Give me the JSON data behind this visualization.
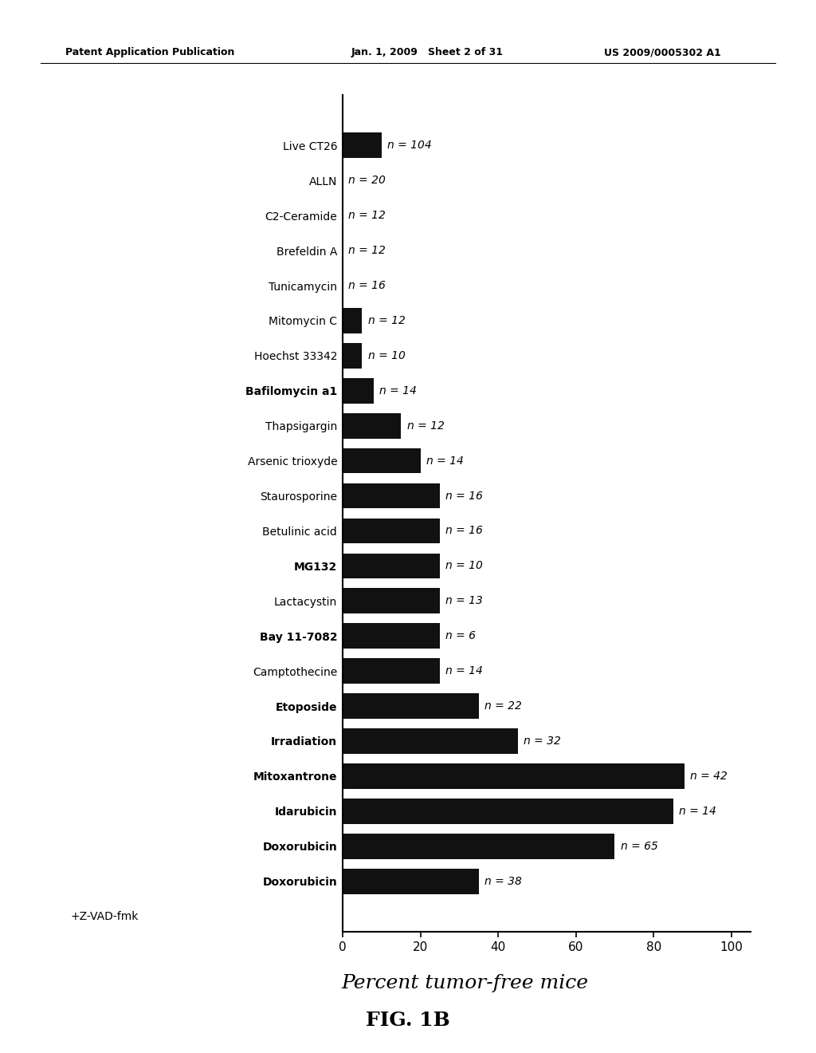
{
  "categories": [
    "Live CT26",
    "ALLN",
    "C2-Ceramide",
    "Brefeldin A",
    "Tunicamycin",
    "Mitomycin C",
    "Hoechst 33342",
    "Bafilomycin a1",
    "Thapsigargin",
    "Arsenic trioxyde",
    "Staurosporine",
    "Betulinic acid",
    "MG132",
    "Lactacystin",
    "Bay 11-7082",
    "Camptothecine",
    "Etoposide",
    "Irradiation",
    "Mitoxantrone",
    "Idarubicin",
    "Doxorubicin",
    "Doxorubicin"
  ],
  "values": [
    10,
    0,
    0,
    0,
    0,
    5,
    5,
    8,
    15,
    20,
    25,
    25,
    25,
    25,
    25,
    25,
    35,
    45,
    88,
    85,
    70,
    35
  ],
  "n_labels": [
    "n = 104",
    "n = 20",
    "n = 12",
    "n = 12",
    "n = 16",
    "n = 12",
    "n = 10",
    "n = 14",
    "n = 12",
    "n = 14",
    "n = 16",
    "n = 16",
    "n = 10",
    "n = 13",
    "n = 6",
    "n = 14",
    "n = 22",
    "n = 32",
    "n = 42",
    "n = 14",
    "n = 65",
    "n = 38"
  ],
  "bold_labels": [
    "Bafilomycin a1",
    "MG132",
    "Bay 11-7082",
    "Etoposide",
    "Irradiation",
    "Mitoxantrone",
    "Idarubicin",
    "Doxorubicin"
  ],
  "bar_color": "#111111",
  "background_color": "#ffffff",
  "xlabel": "Percent tumor-free mice",
  "fig_label": "FIG. 1B",
  "patent_left": "Patent Application Publication",
  "patent_mid": "Jan. 1, 2009   Sheet 2 of 31",
  "patent_right": "US 2009/0005302 A1",
  "xlim": [
    0,
    100
  ],
  "xticks": [
    0,
    20,
    40,
    60,
    80,
    100
  ]
}
